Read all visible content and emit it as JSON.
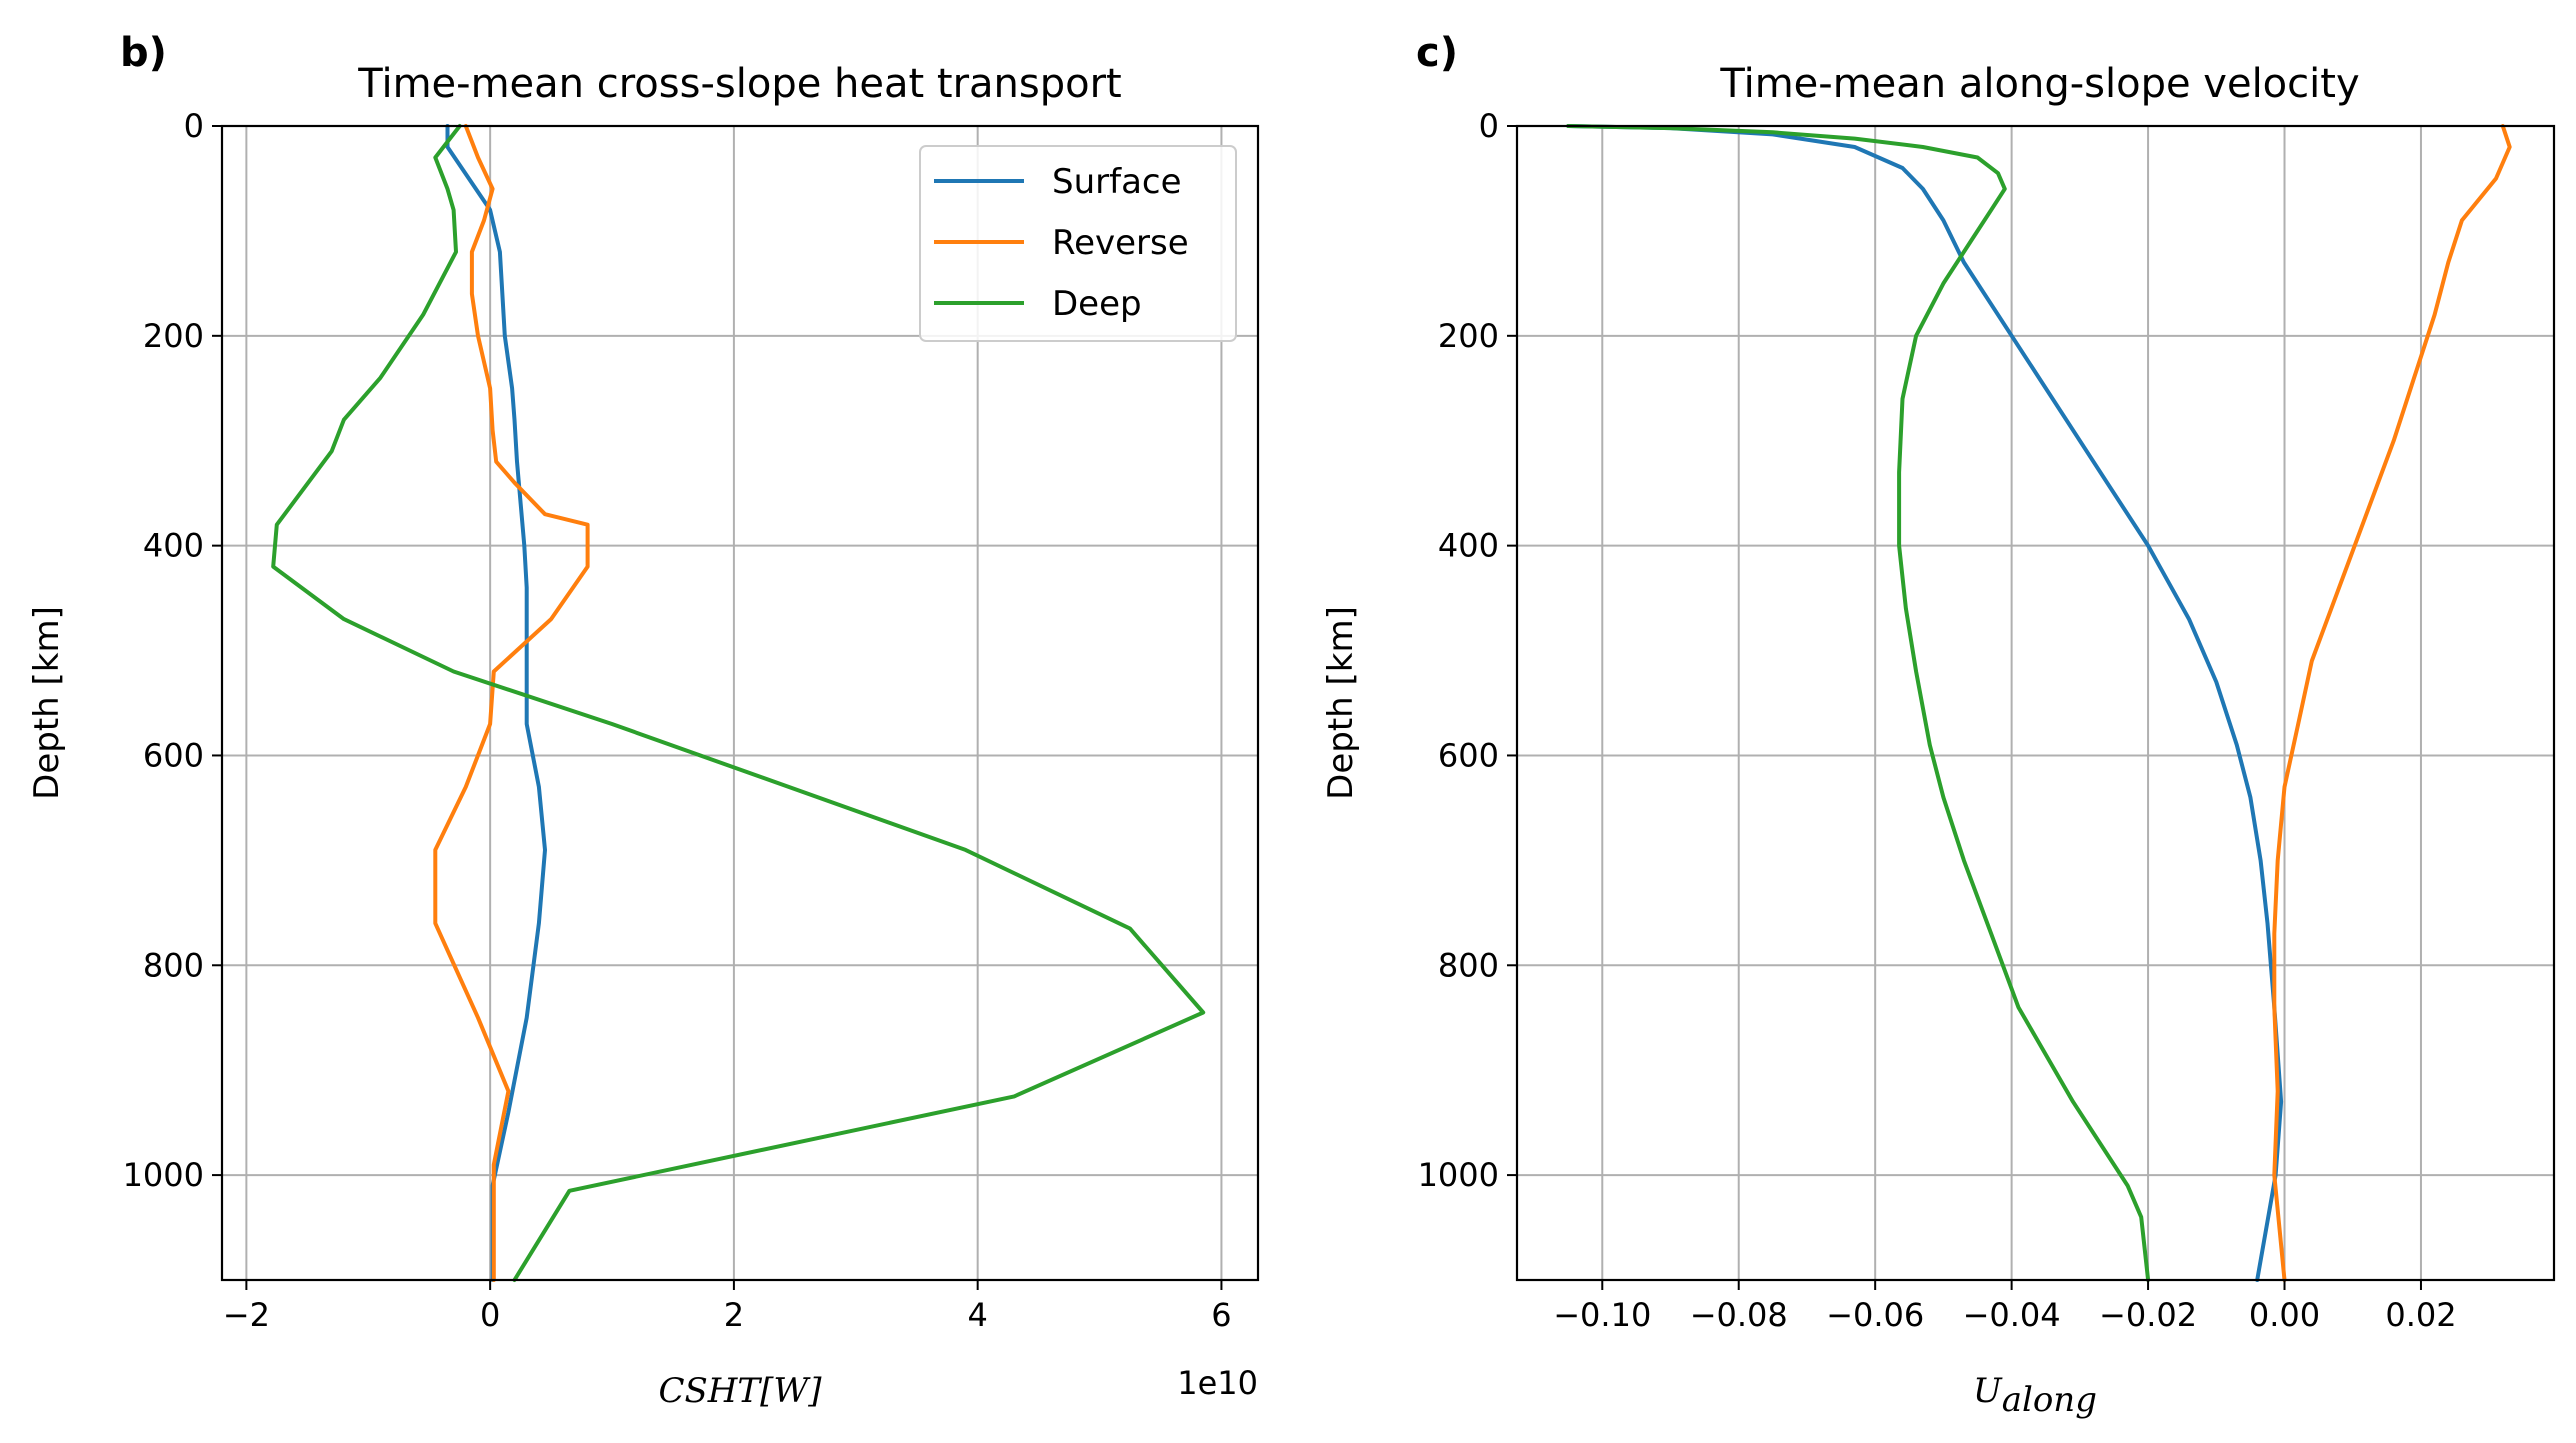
{
  "panels": [
    {
      "label": "b)",
      "title": "Time-mean cross-slope heat transport",
      "xlabel": "CSHT[W]",
      "ylabel": "Depth [km]",
      "offset_text": "1e10",
      "ticks_x": [
        "−2",
        "0",
        "2",
        "4",
        "6"
      ],
      "ticks_y": [
        "0",
        "200",
        "400",
        "600",
        "800",
        "1000"
      ],
      "legend": [
        "Surface",
        "Reverse",
        "Deep"
      ]
    },
    {
      "label": "c)",
      "title": "Time-mean along-slope velocity",
      "xlabel_main": "U",
      "xlabel_sub": "along",
      "ylabel": "Depth [km]",
      "ticks_x": [
        "−0.10",
        "−0.08",
        "−0.06",
        "−0.04",
        "−0.02",
        "0.00",
        "0.02"
      ],
      "ticks_y": [
        "0",
        "200",
        "400",
        "600",
        "800",
        "1000"
      ]
    }
  ],
  "chart_data": [
    {
      "type": "line",
      "orientation": "profile",
      "title": "Time-mean cross-slope heat transport",
      "xlabel": "CSHT[W]",
      "ylabel": "Depth [km]",
      "x_scale_factor": 10000000000.0,
      "xlim": [
        -2.2,
        6.3
      ],
      "ylim": [
        1100,
        0
      ],
      "y_inverted": true,
      "grid": true,
      "legend_position": "upper-right",
      "colors": {
        "Surface": "#1f77b4",
        "Reverse": "#ff7f0e",
        "Deep": "#2ca02c"
      },
      "series": [
        {
          "name": "Surface",
          "points": [
            [
              -0.35,
              0
            ],
            [
              -0.35,
              20
            ],
            [
              0,
              80
            ],
            [
              0.08,
              120
            ],
            [
              0.12,
              200
            ],
            [
              0.18,
              250
            ],
            [
              0.2,
              280
            ],
            [
              0.22,
              320
            ],
            [
              0.28,
              400
            ],
            [
              0.3,
              440
            ],
            [
              0.3,
              480
            ],
            [
              0.3,
              520
            ],
            [
              0.3,
              570
            ],
            [
              0.4,
              630
            ],
            [
              0.45,
              690
            ],
            [
              0.4,
              760
            ],
            [
              0.3,
              850
            ],
            [
              0.15,
              940
            ],
            [
              0.02,
              1010
            ],
            [
              0.02,
              1100
            ]
          ]
        },
        {
          "name": "Reverse",
          "points": [
            [
              -0.2,
              0
            ],
            [
              -0.1,
              30
            ],
            [
              0.02,
              60
            ],
            [
              -0.05,
              90
            ],
            [
              -0.15,
              120
            ],
            [
              -0.15,
              160
            ],
            [
              -0.1,
              200
            ],
            [
              0,
              250
            ],
            [
              0.02,
              290
            ],
            [
              0.05,
              320
            ],
            [
              0.2,
              340
            ],
            [
              0.45,
              370
            ],
            [
              0.8,
              380
            ],
            [
              0.8,
              420
            ],
            [
              0.5,
              470
            ],
            [
              0.03,
              520
            ],
            [
              0,
              570
            ],
            [
              -0.2,
              630
            ],
            [
              -0.45,
              690
            ],
            [
              -0.45,
              760
            ],
            [
              -0.1,
              850
            ],
            [
              0.15,
              920
            ],
            [
              0.03,
              990
            ],
            [
              0.03,
              1100
            ]
          ]
        },
        {
          "name": "Deep",
          "points": [
            [
              -0.25,
              0
            ],
            [
              -0.45,
              30
            ],
            [
              -0.35,
              60
            ],
            [
              -0.3,
              80
            ],
            [
              -0.28,
              120
            ],
            [
              -0.55,
              180
            ],
            [
              -0.9,
              240
            ],
            [
              -1.2,
              280
            ],
            [
              -1.3,
              310
            ],
            [
              -1.75,
              380
            ],
            [
              -1.78,
              420
            ],
            [
              -1.2,
              470
            ],
            [
              -0.3,
              520
            ],
            [
              1.0,
              570
            ],
            [
              3.9,
              690
            ],
            [
              5.25,
              765
            ],
            [
              5.85,
              845
            ],
            [
              4.3,
              925
            ],
            [
              0.65,
              1015
            ],
            [
              0.2,
              1100
            ]
          ]
        }
      ]
    },
    {
      "type": "line",
      "orientation": "profile",
      "title": "Time-mean along-slope velocity",
      "xlabel": "U_along",
      "ylabel": "Depth [km]",
      "xlim": [
        -0.1125,
        0.0395
      ],
      "ylim": [
        1100,
        0
      ],
      "y_inverted": true,
      "grid": true,
      "colors": {
        "Surface": "#1f77b4",
        "Reverse": "#ff7f0e",
        "Deep": "#2ca02c"
      },
      "series": [
        {
          "name": "Surface",
          "points": [
            [
              -0.105,
              0
            ],
            [
              -0.09,
              2
            ],
            [
              -0.075,
              8
            ],
            [
              -0.063,
              20
            ],
            [
              -0.056,
              40
            ],
            [
              -0.053,
              60
            ],
            [
              -0.05,
              90
            ],
            [
              -0.047,
              130
            ],
            [
              -0.043,
              170
            ],
            [
              -0.038,
              220
            ],
            [
              -0.032,
              280
            ],
            [
              -0.026,
              340
            ],
            [
              -0.02,
              400
            ],
            [
              -0.014,
              470
            ],
            [
              -0.01,
              530
            ],
            [
              -0.007,
              590
            ],
            [
              -0.005,
              640
            ],
            [
              -0.0035,
              700
            ],
            [
              -0.0025,
              760
            ],
            [
              -0.0015,
              840
            ],
            [
              -0.0005,
              930
            ],
            [
              -0.0013,
              1000
            ],
            [
              -0.004,
              1100
            ]
          ]
        },
        {
          "name": "Reverse",
          "points": [
            [
              0.032,
              0
            ],
            [
              0.033,
              20
            ],
            [
              0.031,
              50
            ],
            [
              0.026,
              90
            ],
            [
              0.024,
              130
            ],
            [
              0.022,
              180
            ],
            [
              0.021,
              200
            ],
            [
              0.019,
              240
            ],
            [
              0.016,
              300
            ],
            [
              0.012,
              370
            ],
            [
              0.008,
              440
            ],
            [
              0.004,
              510
            ],
            [
              0.002,
              570
            ],
            [
              0.0,
              630
            ],
            [
              -0.001,
              700
            ],
            [
              -0.0015,
              770
            ],
            [
              -0.0015,
              840
            ],
            [
              -0.001,
              920
            ],
            [
              -0.0015,
              1000
            ],
            [
              0.0,
              1100
            ]
          ]
        },
        {
          "name": "Deep",
          "points": [
            [
              -0.105,
              0
            ],
            [
              -0.09,
              2
            ],
            [
              -0.075,
              6
            ],
            [
              -0.063,
              12
            ],
            [
              -0.053,
              20
            ],
            [
              -0.045,
              30
            ],
            [
              -0.042,
              45
            ],
            [
              -0.041,
              60
            ],
            [
              -0.043,
              80
            ],
            [
              -0.046,
              110
            ],
            [
              -0.05,
              150
            ],
            [
              -0.054,
              200
            ],
            [
              -0.056,
              260
            ],
            [
              -0.0565,
              330
            ],
            [
              -0.0565,
              400
            ],
            [
              -0.0555,
              460
            ],
            [
              -0.054,
              520
            ],
            [
              -0.052,
              590
            ],
            [
              -0.05,
              640
            ],
            [
              -0.047,
              700
            ],
            [
              -0.043,
              770
            ],
            [
              -0.039,
              840
            ],
            [
              -0.031,
              930
            ],
            [
              -0.023,
              1010
            ],
            [
              -0.021,
              1040
            ],
            [
              -0.02,
              1100
            ]
          ]
        }
      ]
    }
  ]
}
